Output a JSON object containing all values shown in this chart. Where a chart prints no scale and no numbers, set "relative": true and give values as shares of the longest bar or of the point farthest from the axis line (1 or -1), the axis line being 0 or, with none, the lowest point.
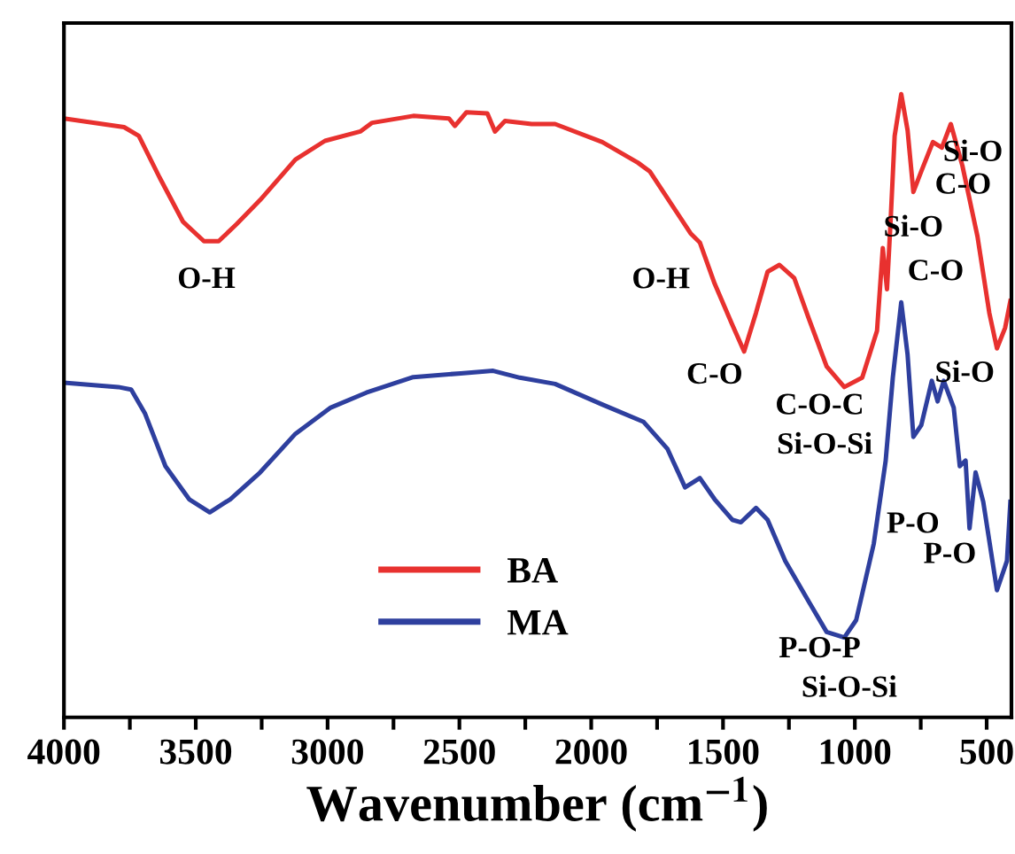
{
  "chart_data": {
    "type": "line",
    "relative": true,
    "xlabel": "Wavenumber (cm$^{−1}$)",
    "xlim": [
      4000,
      406
    ],
    "xticks": [
      4000,
      {
        "value": 3750,
        "label": null
      },
      3500,
      {
        "value": 3250,
        "label": null
      },
      3000,
      {
        "value": 2750,
        "label": null
      },
      2500,
      {
        "value": 2250,
        "label": null
      },
      2000,
      {
        "value": 1750,
        "label": null
      },
      1500,
      {
        "value": 1250,
        "label": null
      },
      1000,
      {
        "value": 750,
        "label": null
      },
      500
    ],
    "tick_labels": "x",
    "grid": false,
    "legend": "bottom",
    "marker": "none",
    "line_style": "solid",
    "series": [
      {
        "name": "BA",
        "color": "#e8312f",
        "x": [
          4000,
          3772,
          3716,
          3637,
          3548,
          3469,
          3413,
          3346,
          3256,
          3122,
          3010,
          2876,
          2831,
          2675,
          2540,
          2517,
          2473,
          2394,
          2365,
          2327,
          2226,
          2137,
          1958,
          1823,
          1778,
          1689,
          1622,
          1588,
          1532,
          1465,
          1420,
          1375,
          1331,
          1286,
          1230,
          1174,
          1107,
          1040,
          972,
          916,
          894,
          878,
          865,
          849,
          824,
          800,
          778,
          748,
          704,
          670,
          636,
          592,
          535,
          490,
          461,
          430,
          410
        ],
        "values": [
          0.961,
          0.947,
          0.933,
          0.866,
          0.795,
          0.764,
          0.764,
          0.791,
          0.83,
          0.895,
          0.925,
          0.94,
          0.954,
          0.965,
          0.961,
          0.949,
          0.971,
          0.969,
          0.94,
          0.957,
          0.952,
          0.952,
          0.923,
          0.89,
          0.876,
          0.819,
          0.776,
          0.762,
          0.696,
          0.63,
          0.587,
          0.649,
          0.715,
          0.726,
          0.705,
          0.639,
          0.563,
          0.53,
          0.545,
          0.62,
          0.753,
          0.687,
          0.791,
          0.933,
          1.0,
          0.942,
          0.843,
          0.876,
          0.923,
          0.914,
          0.952,
          0.885,
          0.772,
          0.649,
          0.592,
          0.625,
          0.668
        ]
      },
      {
        "name": "MA",
        "color": "#2e3f9e",
        "x": [
          4000,
          3794,
          3745,
          3693,
          3615,
          3525,
          3447,
          3369,
          3256,
          3122,
          2988,
          2853,
          2675,
          2495,
          2372,
          2271,
          2137,
          1958,
          1801,
          1711,
          1644,
          1588,
          1532,
          1465,
          1432,
          1375,
          1331,
          1264,
          1174,
          1107,
          1040,
          995,
          928,
          883,
          856,
          824,
          800,
          778,
          748,
          708,
          686,
          663,
          625,
          602,
          580,
          565,
          542,
          513,
          461,
          423,
          410
        ],
        "values": [
          0.537,
          0.53,
          0.526,
          0.488,
          0.403,
          0.35,
          0.329,
          0.35,
          0.393,
          0.455,
          0.497,
          0.521,
          0.546,
          0.552,
          0.556,
          0.545,
          0.535,
          0.502,
          0.474,
          0.431,
          0.369,
          0.384,
          0.35,
          0.317,
          0.313,
          0.336,
          0.317,
          0.251,
          0.185,
          0.137,
          0.128,
          0.156,
          0.279,
          0.412,
          0.545,
          0.666,
          0.582,
          0.45,
          0.469,
          0.54,
          0.507,
          0.54,
          0.497,
          0.403,
          0.412,
          0.303,
          0.393,
          0.346,
          0.204,
          0.251,
          0.346
        ]
      }
    ],
    "annotations": [
      {
        "text": "O-H",
        "x": 3413,
        "y": 0.764
      },
      {
        "text": "O-H",
        "x": 1689,
        "y": 0.819
      },
      {
        "text": "C-O",
        "x": 1420,
        "y": 0.587
      },
      {
        "text": "C-O-C",
        "x": 1040,
        "y": 0.53
      },
      {
        "text": "Si-O-Si",
        "x": 1040,
        "y": 0.53
      },
      {
        "text": "Si-O",
        "x": 778,
        "y": 0.843
      },
      {
        "text": "C-O",
        "x": 748,
        "y": 0.876
      },
      {
        "text": "Si-O",
        "x": 636,
        "y": 0.952
      },
      {
        "text": "C-O",
        "x": 824,
        "y": 0.666
      },
      {
        "text": "Si-O",
        "x": 490,
        "y": 0.649
      },
      {
        "text": "P-O",
        "x": 602,
        "y": 0.403
      },
      {
        "text": "P-O",
        "x": 565,
        "y": 0.303
      },
      {
        "text": "P-O-P",
        "x": 1040,
        "y": 0.128
      },
      {
        "text": "Si-O-Si",
        "x": 1040,
        "y": 0.128
      }
    ]
  }
}
